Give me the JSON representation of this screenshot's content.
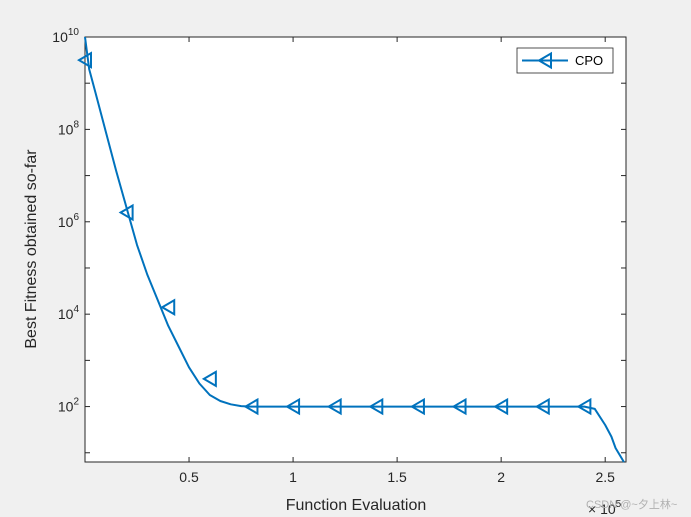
{
  "chart_data": {
    "type": "line",
    "xlabel": "Function Evaluation",
    "ylabel": "Best Fitness obtained so-far",
    "x_exponent_label": "× 10",
    "x_exponent_power": "5",
    "xlim": [
      0,
      2.6
    ],
    "ylim_log10": [
      0.8,
      10
    ],
    "y_scale": "log",
    "x_ticks": [
      {
        "value": 0.5,
        "label": "0.5"
      },
      {
        "value": 1,
        "label": "1"
      },
      {
        "value": 1.5,
        "label": "1.5"
      },
      {
        "value": 2,
        "label": "2"
      },
      {
        "value": 2.5,
        "label": "2.5"
      }
    ],
    "y_ticks": [
      {
        "log10": 2,
        "base": "10",
        "exp": "2"
      },
      {
        "log10": 4,
        "base": "10",
        "exp": "4"
      },
      {
        "log10": 6,
        "base": "10",
        "exp": "6"
      },
      {
        "log10": 8,
        "base": "10",
        "exp": "8"
      },
      {
        "log10": 10,
        "base": "10",
        "exp": "10"
      }
    ],
    "grid": false,
    "legend_position": "top-right",
    "series": [
      {
        "name": "CPO",
        "color": "#0072BD",
        "marker": "triangle-left",
        "line_log10": [
          [
            0,
            10
          ],
          [
            0.02,
            9.3
          ],
          [
            0.05,
            8.8
          ],
          [
            0.1,
            7.95
          ],
          [
            0.15,
            7.1
          ],
          [
            0.2,
            6.3
          ],
          [
            0.25,
            5.5
          ],
          [
            0.3,
            4.85
          ],
          [
            0.35,
            4.3
          ],
          [
            0.4,
            3.75
          ],
          [
            0.45,
            3.3
          ],
          [
            0.5,
            2.85
          ],
          [
            0.55,
            2.5
          ],
          [
            0.6,
            2.25
          ],
          [
            0.65,
            2.12
          ],
          [
            0.7,
            2.05
          ],
          [
            0.75,
            2.01
          ],
          [
            0.8,
            2
          ],
          [
            1.0,
            2
          ],
          [
            1.5,
            2
          ],
          [
            2.0,
            2
          ],
          [
            2.4,
            2
          ],
          [
            2.45,
            1.95
          ],
          [
            2.5,
            1.6
          ],
          [
            2.53,
            1.35
          ],
          [
            2.55,
            1.1
          ],
          [
            2.57,
            0.95
          ],
          [
            2.59,
            0.8
          ]
        ],
        "markers_log10": [
          [
            0,
            9.5
          ],
          [
            0.2,
            6.2
          ],
          [
            0.4,
            4.15
          ],
          [
            0.6,
            2.6
          ],
          [
            0.8,
            2
          ],
          [
            1.0,
            2
          ],
          [
            1.2,
            2
          ],
          [
            1.4,
            2
          ],
          [
            1.6,
            2
          ],
          [
            1.8,
            2
          ],
          [
            2.0,
            2
          ],
          [
            2.2,
            2
          ],
          [
            2.4,
            2
          ]
        ]
      }
    ]
  },
  "watermark": "CSDN @~夕上林~"
}
